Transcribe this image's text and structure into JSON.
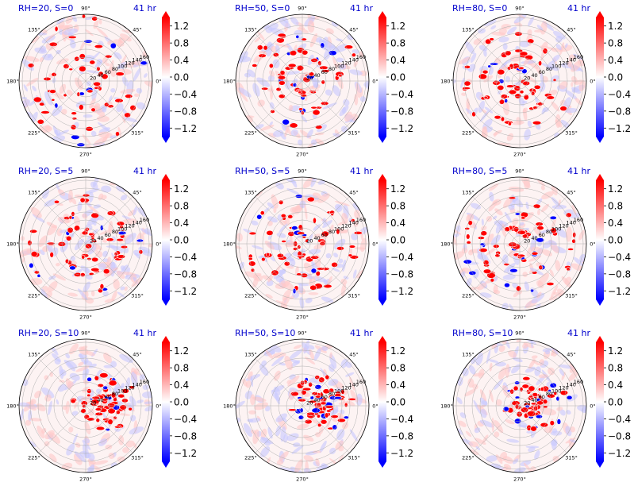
{
  "figure": {
    "colormap": "bwr",
    "colors": {
      "title": "#0000cc",
      "negative": "#0000ff",
      "positive": "#ff0000",
      "grid": "#b0b0b0"
    }
  },
  "polar_axes": {
    "angle_labels": [
      "90°",
      "45°",
      "0°",
      "315°",
      "270°",
      "225°",
      "180°",
      "135°"
    ],
    "radial_labels": [
      "20",
      "40",
      "60",
      "80",
      "100",
      "120",
      "140",
      "160"
    ]
  },
  "colorbar": {
    "ticks": [
      "1.2",
      "0.8",
      "0.4",
      "0.0",
      "−0.4",
      "−0.8",
      "−1.2"
    ],
    "range": [
      -1.4,
      1.4
    ],
    "extend": "both"
  },
  "chart_data": [
    {
      "type": "heatmap",
      "title": "RH=20, S=0",
      "time_label": "41 hr",
      "pattern": "scattered"
    },
    {
      "type": "heatmap",
      "title": "RH=50, S=0",
      "time_label": "41 hr",
      "pattern": "spiral"
    },
    {
      "type": "heatmap",
      "title": "RH=80, S=0",
      "time_label": "41 hr",
      "pattern": "spiral-strong"
    },
    {
      "type": "heatmap",
      "title": "RH=20, S=5",
      "time_label": "41 hr",
      "pattern": "arc"
    },
    {
      "type": "heatmap",
      "title": "RH=50, S=5",
      "time_label": "41 hr",
      "pattern": "arc-spiral"
    },
    {
      "type": "heatmap",
      "title": "RH=80, S=5",
      "time_label": "41 hr",
      "pattern": "spiral-strong"
    },
    {
      "type": "heatmap",
      "title": "RH=20, S=10",
      "time_label": "41 hr",
      "pattern": "shifted"
    },
    {
      "type": "heatmap",
      "title": "RH=50, S=10",
      "time_label": "41 hr",
      "pattern": "shifted"
    },
    {
      "type": "heatmap",
      "title": "RH=80, S=10",
      "time_label": "41 hr",
      "pattern": "shifted-strong"
    }
  ]
}
